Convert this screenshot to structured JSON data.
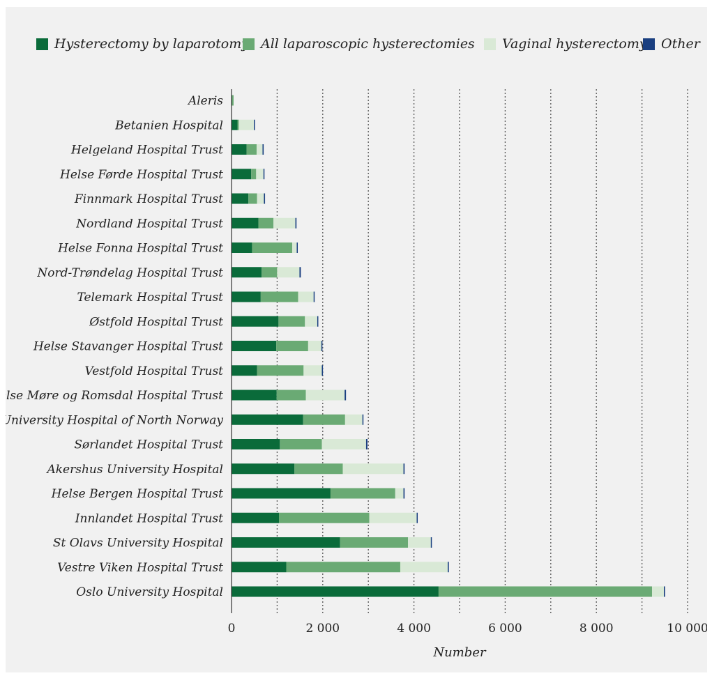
{
  "chart_data": {
    "type": "bar",
    "orientation": "horizontal",
    "stacked": true,
    "title": "",
    "xlabel": "Number",
    "ylabel": "",
    "xlim": [
      0,
      10000
    ],
    "x_ticks": [
      {
        "value": 0,
        "label": "0"
      },
      {
        "value": 2000,
        "label": "2 000"
      },
      {
        "value": 4000,
        "label": "4 000"
      },
      {
        "value": 6000,
        "label": "6 000"
      },
      {
        "value": 8000,
        "label": "8 000"
      },
      {
        "value": 10000,
        "label": "10 000"
      }
    ],
    "grid": "vertical dotted lines every 1000",
    "legend_position": "top",
    "categories": [
      "Aleris",
      "Betanien Hospital",
      "Helgeland Hospital Trust",
      "Helse Førde Hospital Trust",
      "Finnmark Hospital Trust",
      "Nordland Hospital Trust",
      "Helse Fonna Hospital Trust",
      "Nord-Trøndelag Hospital Trust",
      "Telemark Hospital Trust",
      "Østfold Hospital Trust",
      "Helse Stavanger Hospital Trust",
      "Vestfold Hospital Trust",
      "Helse Møre og Romsdal Hospital Trust",
      "University Hospital of North Norway",
      "Sørlandet Hospital Trust",
      "Akershus University Hospital",
      "Helse Bergen Hospital Trust",
      "Innlandet Hospital Trust",
      "St Olavs University Hospital",
      "Vestre Viken Hospital Trust",
      "Oslo University Hospital"
    ],
    "series": [
      {
        "name": "Hysterectomy by laparotomy",
        "color": "#0a6b3a",
        "values": [
          10,
          130,
          330,
          430,
          370,
          590,
          450,
          660,
          640,
          1030,
          980,
          560,
          990,
          1570,
          1060,
          1380,
          2170,
          1040,
          2380,
          1200,
          4540
        ]
      },
      {
        "name": "All laparoscopic hysterectomies",
        "color": "#6aaa74",
        "values": [
          35,
          30,
          220,
          110,
          190,
          330,
          880,
          340,
          820,
          580,
          700,
          1020,
          640,
          920,
          920,
          1060,
          1420,
          1980,
          1490,
          2500,
          4680
        ]
      },
      {
        "name": "Vaginal hysterectomy",
        "color": "#d9e9d6",
        "values": [
          0,
          330,
          130,
          160,
          150,
          480,
          100,
          490,
          340,
          270,
          290,
          400,
          850,
          380,
          970,
          1330,
          180,
          1040,
          500,
          1040,
          260
        ]
      },
      {
        "name": "Other",
        "color": "#1a3f80",
        "values": [
          0,
          20,
          25,
          10,
          25,
          25,
          20,
          30,
          20,
          20,
          20,
          25,
          30,
          20,
          30,
          25,
          25,
          20,
          20,
          25,
          25
        ]
      }
    ]
  }
}
